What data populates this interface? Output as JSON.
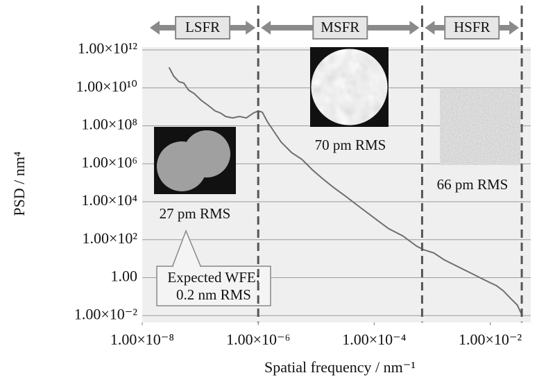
{
  "chart_data": {
    "type": "line",
    "xlabel": "Spatial frequency / nm⁻¹",
    "ylabel": "PSD / nm⁴",
    "xscale": "log",
    "yscale": "log",
    "grid": true,
    "color": "#6e6e6e",
    "xlim": [
      1e-08,
      0.05
    ],
    "ylim": [
      0.0044,
      1400000000000.0
    ],
    "xticks": [
      {
        "value": 1e-08,
        "label": "1.00×10⁻⁸"
      },
      {
        "value": 1e-06,
        "label": "1.00×10⁻⁶"
      },
      {
        "value": 0.0001,
        "label": "1.00×10⁻⁴"
      },
      {
        "value": 0.01,
        "label": "1.00×10⁻²"
      }
    ],
    "yticks": [
      {
        "value": 1000000000000.0,
        "label": "1.00×10¹²"
      },
      {
        "value": 10000000000.0,
        "label": "1.00×10¹⁰"
      },
      {
        "value": 100000000.0,
        "label": "1.00×10⁸"
      },
      {
        "value": 1000000.0,
        "label": "1.00×10⁶"
      },
      {
        "value": 10000.0,
        "label": "1.00×10⁴"
      },
      {
        "value": 100,
        "label": "1.00×10²"
      },
      {
        "value": 1,
        "label": "1.00"
      },
      {
        "value": 0.01,
        "label": "1.00×10⁻²"
      }
    ],
    "x": [
      2.9e-08,
      3.5e-08,
      4.3e-08,
      5.2e-08,
      6.3e-08,
      7.9e-08,
      1.04e-07,
      1.37e-07,
      1.81e-07,
      2.25e-07,
      2.74e-07,
      3.61e-07,
      4.75e-07,
      6.25e-07,
      8.24e-07,
      1e-06,
      1.18e-06,
      1.43e-06,
      1.88e-06,
      2.48e-06,
      3.76e-06,
      5.68e-06,
      8.59e-06,
      1.3e-05,
      1.96e-05,
      3.41e-05,
      5.92e-05,
      0.000103,
      0.000178,
      0.00031,
      0.000538,
      0.000708,
      0.00107,
      0.00162,
      0.00281,
      0.00489,
      0.00847,
      0.0128,
      0.0169,
      0.0222,
      0.0293,
      0.0356
    ],
    "values": [
      120000000000.0,
      41000000000.0,
      21000000000.0,
      18000000000.0,
      7600000000.0,
      5000000000.0,
      2200000000.0,
      1200000000.0,
      610000000.0,
      470000000.0,
      310000000.0,
      260000000.0,
      310000000.0,
      260000000.0,
      470000000.0,
      610000000.0,
      520000000.0,
      170000000.0,
      49000000.0,
      14000000.0,
      3900000.0,
      1700000.0,
      480000.0,
      160000.0,
      59000.0,
      17000.0,
      4700.0,
      1300.0,
      380,
      160,
      46,
      30,
      20,
      8.6,
      3.7,
      1.6,
      0.69,
      0.38,
      0.2,
      0.084,
      0.036,
      0.01
    ],
    "boundaries": [
      1e-06,
      0.00067,
      0.035
    ],
    "regions": [
      "LSFR",
      "MSFR",
      "HSFR"
    ],
    "annotations": [
      "27 pm RMS",
      "70 pm RMS",
      "66 pm RMS",
      "Expected WFE:",
      "0.2 nm RMS"
    ]
  }
}
